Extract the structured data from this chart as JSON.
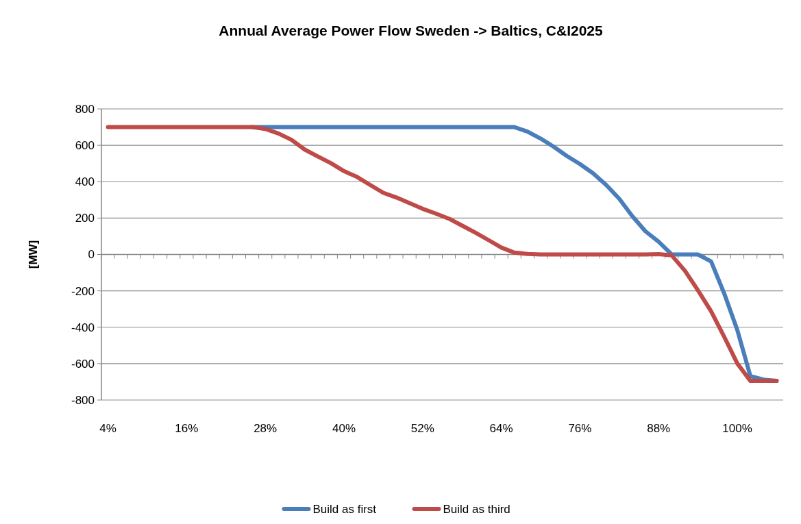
{
  "chart_data": {
    "type": "line",
    "title": "Annual Average Power Flow Sweden -> Baltics, C&I2025",
    "ylabel": "[MW]",
    "categories": [
      "4%",
      null,
      null,
      null,
      null,
      null,
      "16%",
      null,
      null,
      null,
      null,
      null,
      "28%",
      null,
      null,
      null,
      null,
      null,
      "40%",
      null,
      null,
      null,
      null,
      null,
      "52%",
      null,
      null,
      null,
      null,
      null,
      "64%",
      null,
      null,
      null,
      null,
      null,
      "76%",
      null,
      null,
      null,
      null,
      null,
      "88%",
      null,
      null,
      null,
      null,
      null,
      "100%",
      null,
      null,
      null
    ],
    "series": [
      {
        "name": "Build as first",
        "color": "#4a7ebb",
        "values": [
          null,
          null,
          null,
          null,
          null,
          null,
          null,
          null,
          null,
          null,
          null,
          700,
          700,
          700,
          700,
          700,
          700,
          700,
          700,
          700,
          700,
          700,
          700,
          700,
          700,
          700,
          700,
          700,
          700,
          700,
          700,
          700,
          675,
          637,
          592,
          541,
          497,
          446,
          382,
          306,
          210,
          127,
          70,
          0,
          0,
          0,
          -38,
          -214,
          -415,
          -669,
          -688,
          -695
        ]
      },
      {
        "name": "Build as third",
        "color": "#be4b48",
        "values": [
          700,
          700,
          700,
          700,
          700,
          700,
          700,
          700,
          700,
          700,
          700,
          700,
          690,
          665,
          630,
          577,
          539,
          502,
          458,
          426,
          382,
          339,
          313,
          282,
          251,
          225,
          197,
          159,
          121,
          80,
          38,
          10,
          3,
          0,
          0,
          0,
          0,
          0,
          0,
          0,
          0,
          0,
          2,
          -5,
          -89,
          -197,
          -312,
          -452,
          -599,
          -695,
          -695,
          -695
        ]
      }
    ],
    "ylim": [
      -800,
      800
    ],
    "yticks": [
      -800,
      -600,
      -400,
      -200,
      0,
      200,
      400,
      600,
      800
    ],
    "grid": "y",
    "legend": "bottom",
    "line_style": "solid",
    "marker": "none"
  }
}
